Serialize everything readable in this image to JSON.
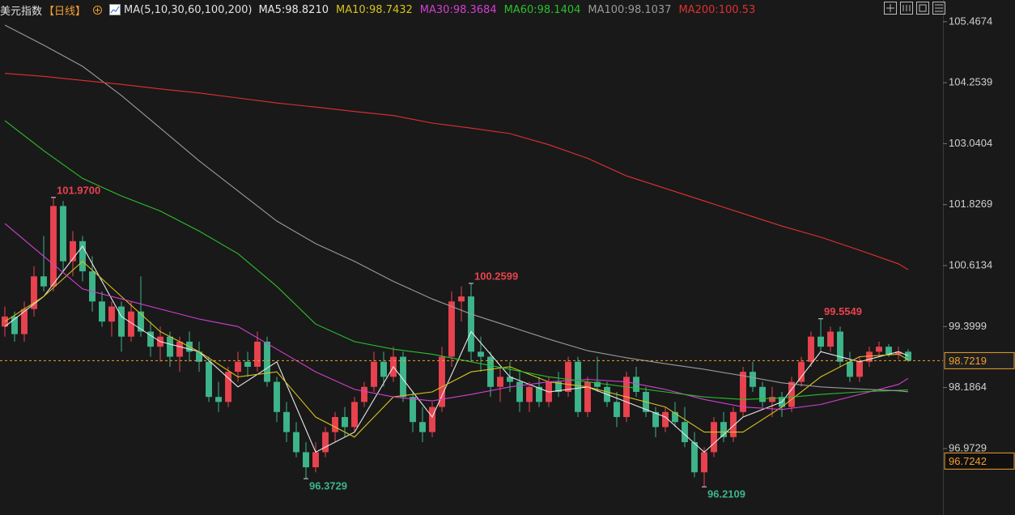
{
  "chart_data": {
    "type": "candlestick",
    "title": "美元指数",
    "period": "【日线】",
    "ma_header": "MA(5,10,30,60,100,200)",
    "up_color": "#e8424f",
    "down_color": "#3db48a",
    "ylim": [
      95.65,
      105.9
    ],
    "yticks": [
      105.4674,
      104.2539,
      103.0404,
      101.8269,
      100.6134,
      99.3999,
      98.1864,
      96.9729
    ],
    "candles": {
      "open": [
        99.4,
        99.6,
        99.25,
        99.75,
        100.4,
        100.2,
        101.8,
        100.7,
        101.1,
        100.5,
        99.9,
        99.5,
        99.8,
        99.2,
        99.7,
        99.3,
        99.0,
        99.2,
        98.8,
        99.1,
        98.9,
        98.7,
        98.0,
        97.9,
        98.5,
        98.7,
        98.6,
        99.1,
        98.3,
        97.7,
        97.3,
        96.9,
        96.6,
        96.9,
        97.3,
        97.6,
        97.4,
        97.9,
        98.2,
        98.7,
        98.4,
        98.8,
        98.0,
        97.5,
        97.3,
        97.8,
        98.8,
        99.9,
        100.0,
        98.9,
        98.8,
        98.2,
        98.4,
        98.3,
        97.9,
        98.2,
        97.9,
        98.3,
        98.1,
        98.7,
        97.7,
        98.3,
        98.2,
        97.9,
        97.6,
        98.4,
        98.1,
        97.7,
        97.4,
        97.7,
        97.5,
        97.1,
        96.5,
        96.9,
        97.5,
        97.2,
        97.7,
        98.5,
        98.2,
        97.9,
        98.0,
        97.8,
        98.3,
        98.7,
        99.2,
        99.0,
        99.3,
        98.7,
        98.4,
        98.7,
        98.9,
        99.0,
        98.85,
        98.9
      ],
      "high": [
        99.8,
        99.7,
        99.9,
        100.6,
        101.2,
        101.97,
        101.9,
        101.3,
        101.2,
        100.8,
        100.1,
        99.9,
        99.9,
        99.9,
        100.4,
        99.5,
        99.4,
        99.3,
        99.2,
        99.3,
        99.1,
        98.8,
        98.3,
        98.6,
        98.9,
        98.9,
        99.3,
        99.2,
        98.4,
        97.9,
        97.5,
        97.1,
        97.1,
        97.4,
        97.7,
        97.8,
        98.0,
        98.3,
        98.9,
        98.9,
        99.0,
        98.9,
        98.1,
        97.8,
        97.9,
        99.0,
        100.1,
        100.2,
        100.2599,
        99.2,
        98.9,
        98.6,
        98.7,
        98.5,
        98.3,
        98.4,
        98.4,
        98.5,
        98.8,
        98.8,
        98.4,
        98.8,
        98.3,
        98.1,
        98.5,
        98.6,
        98.2,
        97.8,
        97.8,
        97.9,
        97.8,
        97.3,
        97.0,
        97.6,
        97.7,
        97.8,
        98.6,
        98.7,
        98.3,
        98.2,
        98.1,
        98.4,
        98.8,
        99.3,
        99.5549,
        99.4,
        99.4,
        98.9,
        98.8,
        99.0,
        99.1,
        99.05,
        99.0,
        98.95
      ],
      "low": [
        99.2,
        99.1,
        99.1,
        99.6,
        100.1,
        100.1,
        100.5,
        100.4,
        100.3,
        99.7,
        99.4,
        99.2,
        98.9,
        99.1,
        99.2,
        98.8,
        98.7,
        98.6,
        98.5,
        98.7,
        98.5,
        97.9,
        97.7,
        97.8,
        98.3,
        98.4,
        98.5,
        98.2,
        97.5,
        97.1,
        96.8,
        96.3729,
        96.5,
        96.8,
        97.1,
        97.2,
        97.3,
        97.8,
        98.1,
        98.2,
        98.3,
        97.9,
        97.3,
        97.1,
        97.2,
        97.7,
        98.6,
        99.5,
        98.7,
        98.5,
        98.0,
        97.9,
        98.1,
        97.7,
        97.7,
        97.8,
        97.8,
        98.0,
        98.0,
        97.6,
        97.6,
        98.1,
        97.8,
        97.4,
        97.5,
        98.0,
        97.6,
        97.2,
        97.3,
        97.4,
        97.0,
        96.4,
        96.2109,
        96.8,
        97.1,
        97.1,
        97.6,
        98.1,
        97.8,
        97.6,
        97.6,
        97.7,
        98.2,
        98.6,
        98.9,
        98.9,
        98.6,
        98.3,
        98.3,
        98.6,
        98.8,
        98.8,
        98.75,
        98.7
      ],
      "close": [
        99.6,
        99.25,
        99.75,
        100.4,
        100.2,
        101.8,
        100.7,
        101.1,
        100.5,
        99.9,
        99.5,
        99.8,
        99.2,
        99.7,
        99.3,
        99.0,
        99.2,
        98.8,
        99.1,
        98.9,
        98.7,
        98.0,
        97.9,
        98.5,
        98.7,
        98.6,
        99.1,
        98.3,
        97.7,
        97.3,
        96.9,
        96.6,
        96.9,
        97.3,
        97.6,
        97.4,
        97.9,
        98.2,
        98.7,
        98.4,
        98.8,
        98.0,
        97.5,
        97.3,
        97.8,
        98.8,
        99.9,
        100.0,
        98.9,
        98.8,
        98.2,
        98.4,
        98.3,
        97.9,
        98.2,
        97.9,
        98.3,
        98.1,
        98.7,
        97.7,
        98.3,
        98.2,
        97.9,
        97.6,
        98.4,
        98.1,
        97.7,
        97.4,
        97.7,
        97.5,
        97.1,
        96.5,
        96.9,
        97.5,
        97.2,
        97.7,
        98.5,
        98.2,
        97.9,
        98.0,
        97.8,
        98.3,
        98.7,
        99.2,
        99.0,
        99.3,
        98.7,
        98.4,
        98.7,
        98.9,
        99.0,
        98.85,
        98.9,
        98.7219
      ]
    },
    "ma_index": [
      0,
      4,
      8,
      12,
      16,
      20,
      24,
      28,
      32,
      36,
      40,
      44,
      48,
      52,
      56,
      60,
      64,
      68,
      72,
      76,
      80,
      84,
      88,
      92,
      93
    ],
    "series": [
      {
        "name": "MA5:98.8210",
        "color": "#e8e8e8",
        "values": [
          99.4,
          100.0,
          101.0,
          99.6,
          99.1,
          98.9,
          98.2,
          98.7,
          96.9,
          97.3,
          98.6,
          97.6,
          99.3,
          98.4,
          98.1,
          98.2,
          97.9,
          97.6,
          96.9,
          97.6,
          97.9,
          98.9,
          98.7,
          98.9,
          98.821
        ]
      },
      {
        "name": "MA10:98.7432",
        "color": "#d6c21c",
        "values": [
          99.5,
          100.0,
          100.7,
          100.0,
          99.3,
          98.9,
          98.4,
          98.5,
          97.6,
          97.2,
          98.0,
          98.1,
          98.5,
          98.6,
          98.3,
          98.2,
          98.0,
          97.8,
          97.3,
          97.3,
          97.8,
          98.4,
          98.8,
          98.85,
          98.7432
        ]
      },
      {
        "name": "MA30:98.3684",
        "color": "#d23fd2",
        "values": [
          101.45,
          100.8,
          100.15,
          99.95,
          99.75,
          99.55,
          99.4,
          98.95,
          98.5,
          98.15,
          98.0,
          97.92,
          98.05,
          98.2,
          98.3,
          98.35,
          98.3,
          98.15,
          97.95,
          97.8,
          97.75,
          97.85,
          98.05,
          98.25,
          98.3684
        ]
      },
      {
        "name": "MA60:98.1404",
        "color": "#2bbf2b",
        "values": [
          103.5,
          102.9,
          102.35,
          102.0,
          101.7,
          101.3,
          100.85,
          100.2,
          99.45,
          99.1,
          98.95,
          98.85,
          98.7,
          98.55,
          98.4,
          98.3,
          98.2,
          98.1,
          98.0,
          97.95,
          97.98,
          98.05,
          98.1,
          98.13,
          98.1404
        ]
      },
      {
        "name": "MA100:98.1037",
        "color": "#9a9a9a",
        "values": [
          105.4,
          105.0,
          104.58,
          104.0,
          103.35,
          102.7,
          102.1,
          101.5,
          101.05,
          100.7,
          100.3,
          99.95,
          99.65,
          99.4,
          99.15,
          98.92,
          98.78,
          98.66,
          98.55,
          98.42,
          98.28,
          98.2,
          98.16,
          98.12,
          98.1037
        ]
      },
      {
        "name": "MA200:100.53",
        "color": "#e03030",
        "values": [
          104.44,
          104.38,
          104.3,
          104.22,
          104.13,
          104.05,
          103.95,
          103.85,
          103.77,
          103.68,
          103.6,
          103.45,
          103.35,
          103.24,
          103.02,
          102.75,
          102.4,
          102.15,
          101.9,
          101.65,
          101.4,
          101.18,
          100.92,
          100.65,
          100.53
        ]
      }
    ],
    "annotations": [
      {
        "label": "101.9700",
        "value": 101.97,
        "kind": "high",
        "color": "#e8424f"
      },
      {
        "label": "100.2599",
        "value": 100.2599,
        "kind": "high",
        "color": "#e8424f"
      },
      {
        "label": "99.5549",
        "value": 99.5549,
        "kind": "high",
        "color": "#e8424f"
      },
      {
        "label": "96.3729",
        "value": 96.3729,
        "kind": "low",
        "color": "#3db48a"
      },
      {
        "label": "96.2109",
        "value": 96.2109,
        "kind": "low",
        "color": "#3db48a"
      }
    ],
    "price_markers": [
      {
        "value": 98.7219,
        "color": "#f0a030",
        "dashed": true
      },
      {
        "value": 96.7242,
        "color": "#f0a030",
        "dashed": false
      }
    ]
  }
}
